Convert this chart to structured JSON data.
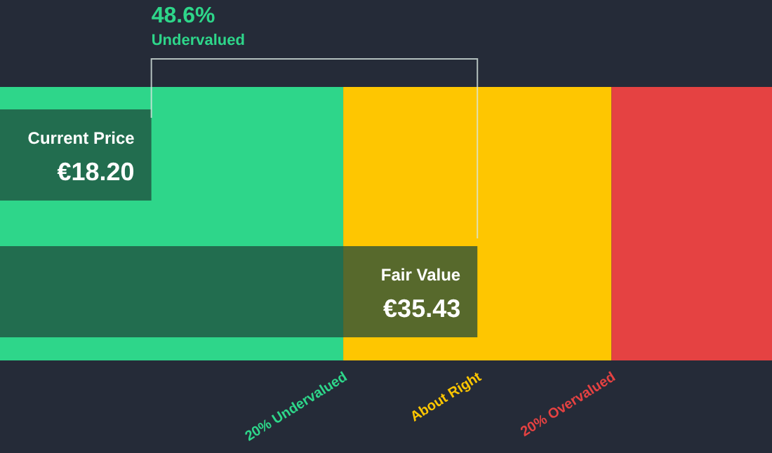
{
  "chart_data": {
    "type": "bar",
    "orientation": "horizontal",
    "title": "48.6%",
    "subtitle": "Undervalued",
    "categories": [
      "Current Price",
      "Fair Value"
    ],
    "values": [
      18.2,
      35.43
    ],
    "value_labels": [
      "€18.20",
      "€35.43"
    ],
    "color": "#1f4a3b",
    "xlim": [
      10.2,
      51
    ],
    "tick_labels": false,
    "grid": false,
    "legend": false,
    "bands": [
      {
        "axis": "x",
        "from": 10.2,
        "to": 28.34,
        "label": "20% Undervalued",
        "color": "#2ed68a"
      },
      {
        "axis": "x",
        "from": 28.34,
        "to": 42.52,
        "label": "About Right",
        "color": "#fec601"
      },
      {
        "axis": "x",
        "from": 42.52,
        "to": 51,
        "label": "20% Overvalued",
        "color": "#e54242"
      }
    ]
  }
}
